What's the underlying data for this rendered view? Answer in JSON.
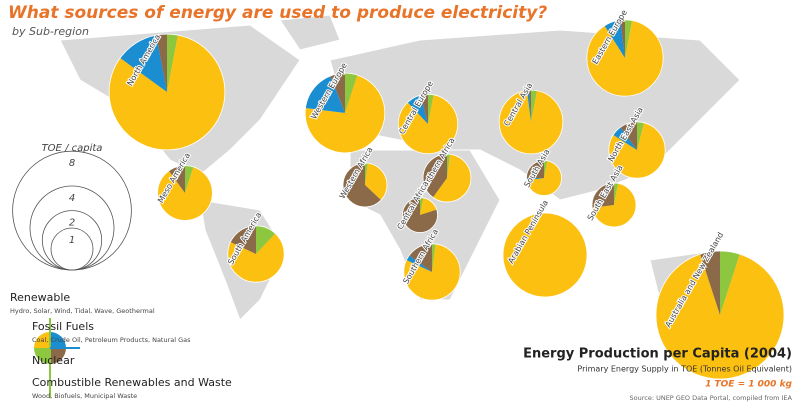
{
  "title": "What sources of energy are used to produce electricity?",
  "subtitle": "by Sub-region",
  "size_legend": {
    "title": "TOE / capita",
    "sizes": [
      8,
      4,
      2,
      1
    ]
  },
  "sources": [
    {
      "name": "Renewable",
      "detail": "Hydro, Solar, Wind, Tidal, Wave, Geothermal",
      "color": "#8dc63f"
    },
    {
      "name": "Fossil Fuels",
      "detail": "Coal, Crude Oil, Petroleum Products, Natural Gas",
      "color": "#fcc010"
    },
    {
      "name": "Nuclear",
      "color": "#1a8ed1"
    },
    {
      "name": "Combustible Renewables and Waste",
      "detail": "Wood, Biofuels, Municipal Waste",
      "color": "#8b6a4a"
    }
  ],
  "regions": [
    {
      "name": "North America",
      "toe": 7.6,
      "shares": [
        3,
        82,
        12,
        3
      ]
    },
    {
      "name": "Western Europe",
      "toe": 3.6,
      "shares": [
        5,
        72,
        17,
        6
      ]
    },
    {
      "name": "Central Europe",
      "toe": 2.0,
      "shares": [
        3,
        85,
        8,
        4
      ]
    },
    {
      "name": "Eastern Europe",
      "toe": 3.3,
      "shares": [
        3,
        88,
        7,
        2
      ]
    },
    {
      "name": "Central Asia",
      "toe": 2.3,
      "shares": [
        3,
        95,
        1,
        1
      ]
    },
    {
      "name": "North East Asia",
      "toe": 1.8,
      "shares": [
        4,
        80,
        6,
        10
      ]
    },
    {
      "name": "Meso America",
      "toe": 1.7,
      "shares": [
        5,
        85,
        0,
        10
      ]
    },
    {
      "name": "Western Africa",
      "toe": 1.1,
      "shares": [
        2,
        35,
        0,
        63
      ]
    },
    {
      "name": "Northern Africa",
      "toe": 1.3,
      "shares": [
        2,
        58,
        0,
        40
      ]
    },
    {
      "name": "South Asia",
      "toe": 0.7,
      "shares": [
        3,
        70,
        2,
        25
      ]
    },
    {
      "name": "Arabian Peninsula",
      "toe": 4.0,
      "shares": [
        0,
        100,
        0,
        0
      ]
    },
    {
      "name": "Central Africa",
      "toe": 0.7,
      "shares": [
        3,
        17,
        0,
        80
      ]
    },
    {
      "name": "Southern Africa",
      "toe": 1.8,
      "shares": [
        2,
        80,
        3,
        15
      ]
    },
    {
      "name": "South America",
      "toe": 1.8,
      "shares": [
        12,
        70,
        0,
        18
      ]
    },
    {
      "name": "South East Asia",
      "toe": 1.1,
      "shares": [
        3,
        70,
        0,
        27
      ]
    },
    {
      "name": "Australia and New Zealand",
      "toe": 9.3,
      "shares": [
        5,
        90,
        0,
        5
      ]
    }
  ],
  "footer": {
    "title": "Energy Production per Capita (2004)",
    "subtitle": "Primary Energy Supply in TOE (Tonnes Oil Equivalent)",
    "conversion": "1 TOE = 1 000 kg",
    "source": "Source: UNEP GEO Data Portal, compiled from IEA"
  }
}
